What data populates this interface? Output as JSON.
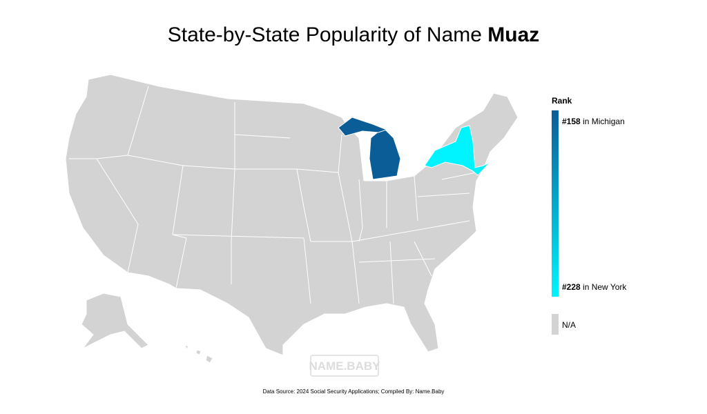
{
  "title": {
    "text": "State-by-State Popularity of Name",
    "name": "Muaz"
  },
  "legend": {
    "title": "Rank",
    "items": [
      {
        "rank": "#158",
        "place": "in Michigan",
        "color": "#0b5d97"
      },
      {
        "rank": "#228",
        "place": "in New York",
        "color": "#00f4ff"
      }
    ],
    "missing": {
      "label": "N/A",
      "color": "#d3d3d3"
    }
  },
  "watermark": "NAME.BABY",
  "source": "Data Source: 2024 Social Security Applications; Compiled By: Name.Baby"
}
